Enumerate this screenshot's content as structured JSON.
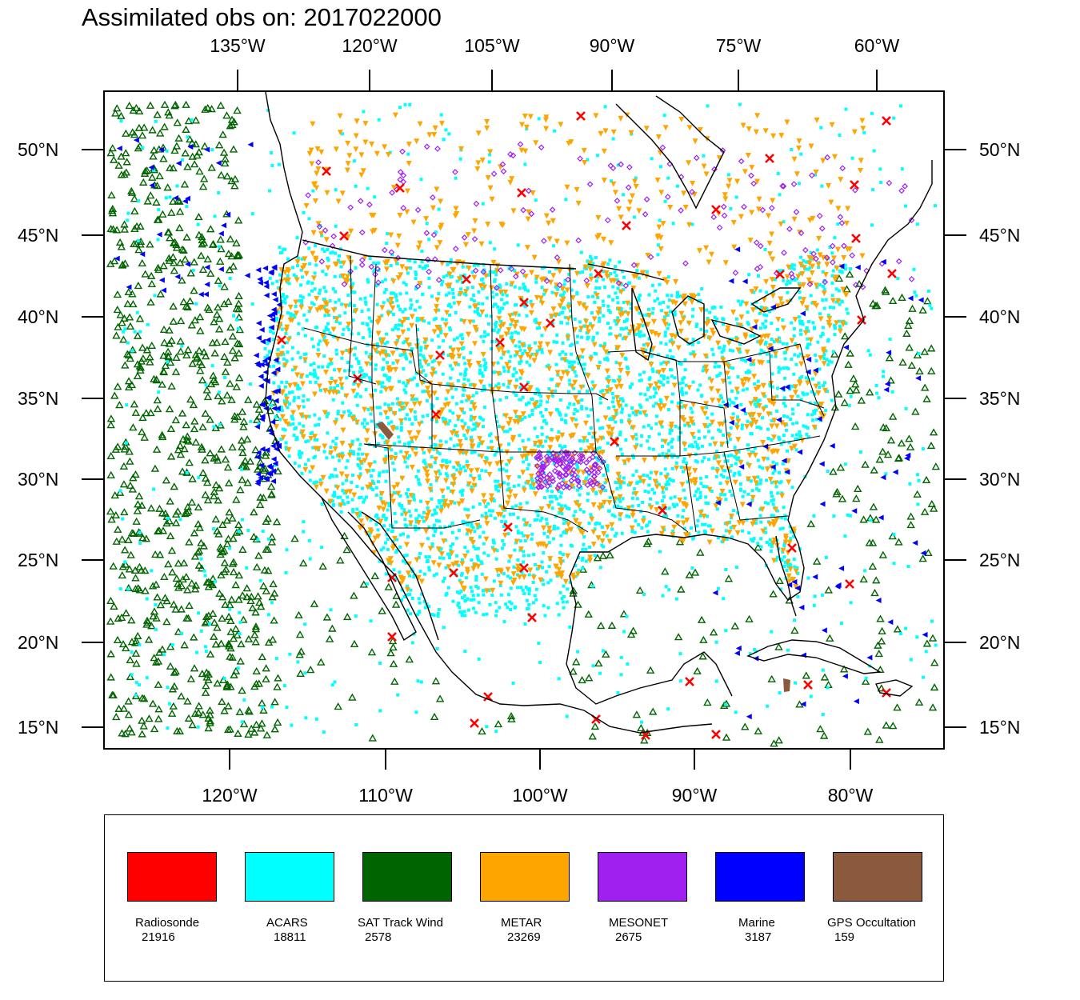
{
  "title": "Assimilated obs on: 2017022000",
  "top_lon_labels": [
    "135°W",
    "120°W",
    "105°W",
    "90°W",
    "75°W",
    "60°W"
  ],
  "bottom_lon_labels": [
    "120°W",
    "110°W",
    "100°W",
    "90°W",
    "80°W"
  ],
  "lat_labels": [
    "50°N",
    "45°N",
    "40°N",
    "35°N",
    "30°N",
    "25°N",
    "20°N",
    "15°N"
  ],
  "legend": [
    {
      "name": "Radiosonde",
      "count": "21916",
      "color": "#ff0000"
    },
    {
      "name": "ACARS",
      "count": "18811",
      "color": "#00ffff"
    },
    {
      "name": "SAT Track Wind",
      "count": "2578",
      "color": "#006400"
    },
    {
      "name": "METAR",
      "count": "23269",
      "color": "#ffa500"
    },
    {
      "name": "MESONET",
      "count": "2675",
      "color": "#a020f0"
    },
    {
      "name": "Marine",
      "count": "3187",
      "color": "#0000ff"
    },
    {
      "name": "GPS Occultation",
      "count": "159",
      "color": "#8b5a3c"
    }
  ]
}
